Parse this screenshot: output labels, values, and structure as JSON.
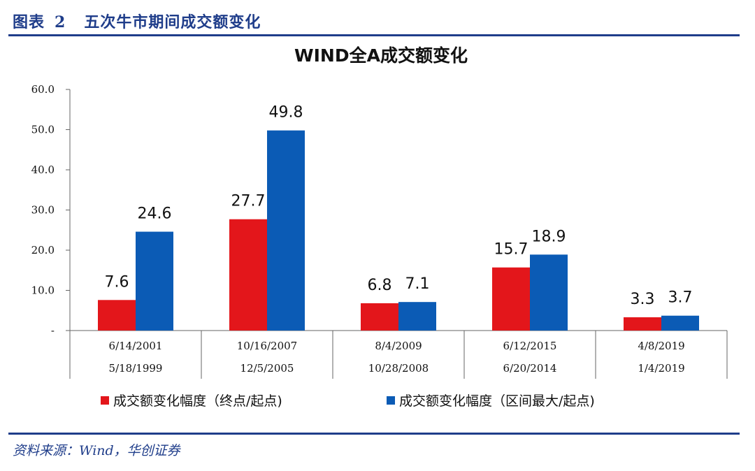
{
  "figure": {
    "label": "图表",
    "number": "2",
    "caption": "五次牛市期间成交额变化"
  },
  "source_note": "资料来源：Wind，华创证券",
  "colors": {
    "series_end": "#e3161b",
    "series_max": "#0b5bb5",
    "rule": "#1f3d8a"
  },
  "chart_data": {
    "type": "bar",
    "title": "WIND全A成交额变化",
    "categories": [
      {
        "end": "6/14/2001",
        "start": "5/18/1999"
      },
      {
        "end": "10/16/2007",
        "start": "12/5/2005"
      },
      {
        "end": "8/4/2009",
        "start": "10/28/2008"
      },
      {
        "end": "6/12/2015",
        "start": "6/20/2014"
      },
      {
        "end": "4/8/2019",
        "start": "1/4/2019"
      }
    ],
    "series": [
      {
        "name": "成交额变化幅度（终点/起点)",
        "values": [
          7.6,
          27.7,
          6.8,
          15.7,
          3.3
        ]
      },
      {
        "name": "成交额变化幅度（区间最大/起点)",
        "values": [
          24.6,
          49.8,
          7.1,
          18.9,
          3.7
        ]
      }
    ],
    "data_labels": [
      [
        "7.6",
        "27.7",
        "6.8",
        "15.7",
        "3.3"
      ],
      [
        "24.6",
        "49.8",
        "7.1",
        "18.9",
        "3.7"
      ]
    ],
    "yticks": [
      "-",
      "10.0",
      "20.0",
      "30.0",
      "40.0",
      "50.0",
      "60.0"
    ],
    "ylim": [
      0,
      60
    ],
    "grid": false,
    "legend_position": "bottom"
  }
}
